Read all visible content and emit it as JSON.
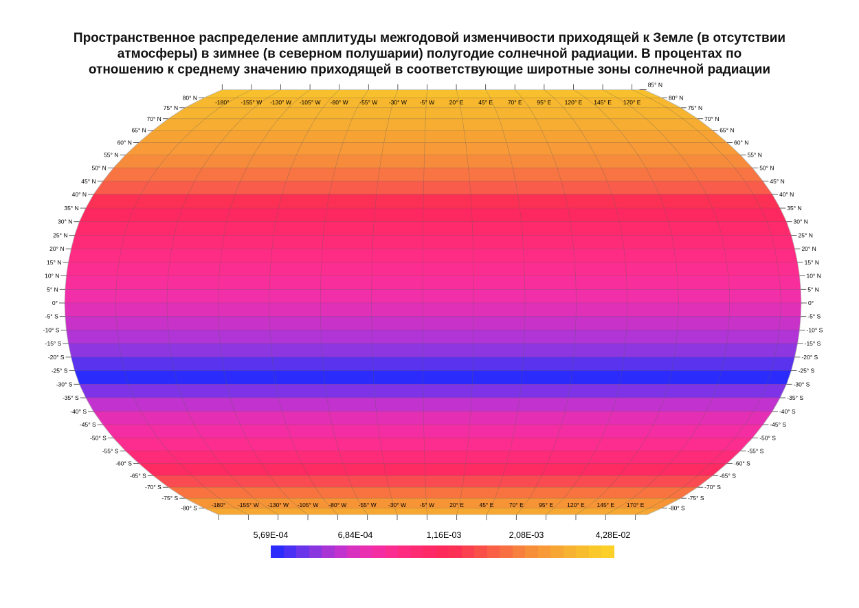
{
  "title": {
    "line1": "Пространственное распределение амплитуды межгодовой изменчивости приходящей к Земле (в отсутствии",
    "line2": "атмосферы) в зимнее (в северном полушарии) полугодие солнечной радиации. В процентах по",
    "line3": "отношению к среднему значению приходящей в соответствующие широтные зоны солнечной радиации"
  },
  "map": {
    "projection": "Robinson",
    "lon_labels": [
      "-180°",
      "-155° W",
      "-130° W",
      "-105° W",
      "-80° W",
      "-55° W",
      "-30° W",
      "-5° W",
      "20° E",
      "45° E",
      "70° E",
      "95° E",
      "120° E",
      "145° E",
      "170° E"
    ],
    "lon_values": [
      -180,
      -155,
      -130,
      -105,
      -80,
      -55,
      -30,
      -5,
      20,
      45,
      70,
      95,
      120,
      145,
      170
    ],
    "top_right_label": "85° N",
    "lat_labels_north": [
      "80° N",
      "75° N",
      "70° N",
      "65° N",
      "60° N",
      "55° N",
      "50° N",
      "45° N",
      "40° N",
      "35° N",
      "30° N",
      "25° N",
      "20° N",
      "15° N",
      "10° N",
      "5° N",
      "0°"
    ],
    "lat_values_north": [
      80,
      75,
      70,
      65,
      60,
      55,
      50,
      45,
      40,
      35,
      30,
      25,
      20,
      15,
      10,
      5,
      0
    ],
    "lat_labels_south": [
      "-5° S",
      "-10° S",
      "-15° S",
      "-20° S",
      "-25° S",
      "-30° S",
      "-35° S",
      "-40° S",
      "-45° S",
      "-50° S",
      "-55° S",
      "-60° S",
      "-65° S",
      "-70° S",
      "-75° S",
      "-80° S"
    ],
    "lat_values_south": [
      -5,
      -10,
      -15,
      -20,
      -25,
      -30,
      -35,
      -40,
      -45,
      -50,
      -55,
      -60,
      -65,
      -70,
      -75,
      -80
    ],
    "band_colors": [
      {
        "lat_from": 85,
        "lat_to": 80,
        "color": "#f8c02c"
      },
      {
        "lat_from": 80,
        "lat_to": 75,
        "color": "#f7b72e"
      },
      {
        "lat_from": 75,
        "lat_to": 70,
        "color": "#f7b430"
      },
      {
        "lat_from": 70,
        "lat_to": 65,
        "color": "#f6ad32"
      },
      {
        "lat_from": 65,
        "lat_to": 60,
        "color": "#f6a334"
      },
      {
        "lat_from": 60,
        "lat_to": 55,
        "color": "#f79a37"
      },
      {
        "lat_from": 55,
        "lat_to": 50,
        "color": "#f78b3c"
      },
      {
        "lat_from": 50,
        "lat_to": 45,
        "color": "#f87442"
      },
      {
        "lat_from": 45,
        "lat_to": 40,
        "color": "#fa5c4c"
      },
      {
        "lat_from": 40,
        "lat_to": 35,
        "color": "#fc3055"
      },
      {
        "lat_from": 35,
        "lat_to": 30,
        "color": "#fe2860"
      },
      {
        "lat_from": 30,
        "lat_to": 25,
        "color": "#fe2a6c"
      },
      {
        "lat_from": 25,
        "lat_to": 20,
        "color": "#fe2b78"
      },
      {
        "lat_from": 20,
        "lat_to": 15,
        "color": "#fe2c84"
      },
      {
        "lat_from": 15,
        "lat_to": 10,
        "color": "#fc2d90"
      },
      {
        "lat_from": 10,
        "lat_to": 5,
        "color": "#f82e9c"
      },
      {
        "lat_from": 5,
        "lat_to": 0,
        "color": "#f02fa9"
      },
      {
        "lat_from": 0,
        "lat_to": -5,
        "color": "#e030b8"
      },
      {
        "lat_from": -5,
        "lat_to": -10,
        "color": "#c832c8"
      },
      {
        "lat_from": -10,
        "lat_to": -15,
        "color": "#b034d6"
      },
      {
        "lat_from": -15,
        "lat_to": -20,
        "color": "#8e36e0"
      },
      {
        "lat_from": -20,
        "lat_to": -25,
        "color": "#5a33ee"
      },
      {
        "lat_from": -25,
        "lat_to": -30,
        "color": "#2b2cfb"
      },
      {
        "lat_from": -30,
        "lat_to": -35,
        "color": "#7e34e6"
      },
      {
        "lat_from": -35,
        "lat_to": -40,
        "color": "#c232ce"
      },
      {
        "lat_from": -40,
        "lat_to": -45,
        "color": "#e42fb4"
      },
      {
        "lat_from": -45,
        "lat_to": -50,
        "color": "#f42ea2"
      },
      {
        "lat_from": -50,
        "lat_to": -55,
        "color": "#fc2d8e"
      },
      {
        "lat_from": -55,
        "lat_to": -60,
        "color": "#fe2b78"
      },
      {
        "lat_from": -60,
        "lat_to": -65,
        "color": "#fd2b62"
      },
      {
        "lat_from": -65,
        "lat_to": -70,
        "color": "#fa4a52"
      },
      {
        "lat_from": -70,
        "lat_to": -75,
        "color": "#f8733f"
      },
      {
        "lat_from": -75,
        "lat_to": -80,
        "color": "#f79536"
      },
      {
        "lat_from": -80,
        "lat_to": -85,
        "color": "#f7a832"
      }
    ]
  },
  "legend": {
    "labels": [
      "5,69E-04",
      "6,84E-04",
      "1,16E-03",
      "2,08E-03",
      "4,28E-02"
    ],
    "colors": [
      "#2b2cfb",
      "#4a30f4",
      "#6a34ea",
      "#8a36e0",
      "#a834d6",
      "#c232ce",
      "#d831c0",
      "#ea30b0",
      "#f42ea2",
      "#fc2d90",
      "#fe2b80",
      "#fe2a72",
      "#fe2966",
      "#fe2a5c",
      "#fc3055",
      "#fb404f",
      "#fa504a",
      "#f96046",
      "#f87042",
      "#f7803e",
      "#f78e3a",
      "#f79a37",
      "#f7a634",
      "#f7b231",
      "#f8bd2e",
      "#fac82b",
      "#fcd028"
    ]
  }
}
